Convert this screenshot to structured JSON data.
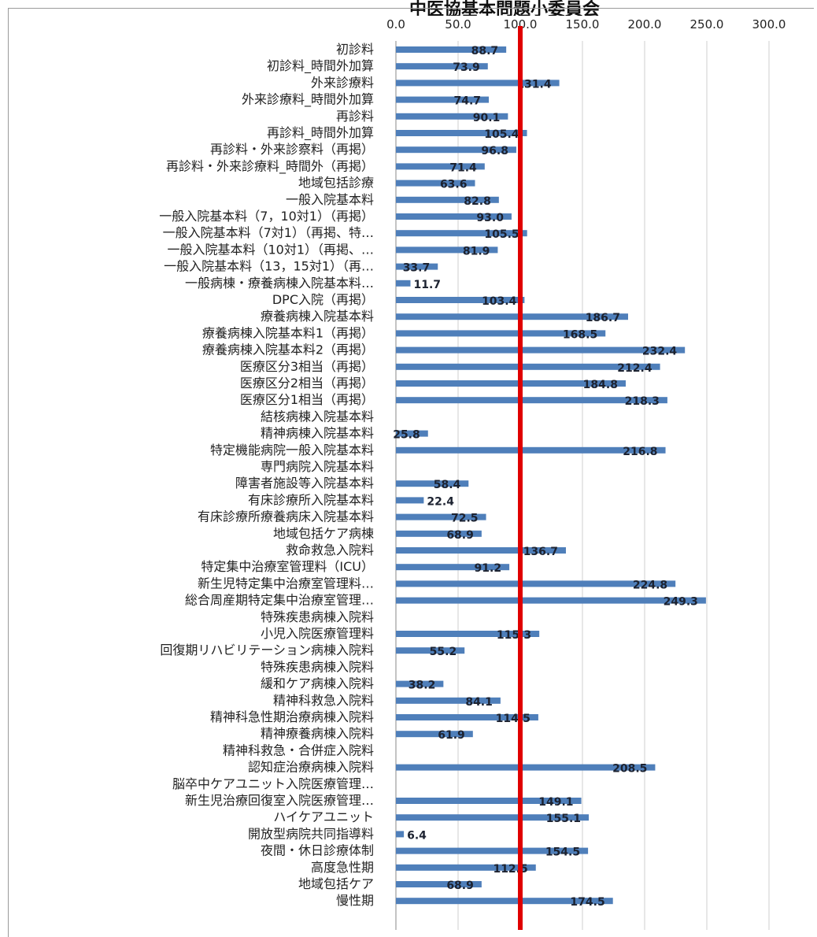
{
  "title": "中医協基本問題小委員会",
  "colors": {
    "bar": "#4f7fba",
    "refline": "#e00000",
    "grid": "#cfcfcf"
  },
  "chart_data": {
    "type": "bar",
    "orientation": "horizontal",
    "title": "",
    "xlabel": "",
    "ylabel": "",
    "xlim": [
      0,
      300
    ],
    "xticks": [
      "0.0",
      "50.0",
      "100.0",
      "150.0",
      "200.0",
      "250.0",
      "300.0"
    ],
    "grid": true,
    "legend": "none",
    "reference_line": 100,
    "categories": [
      "初診料",
      "初診料_時間外加算",
      "外来診療料",
      "外来診療料_時間外加算",
      "再診料",
      "再診料_時間外加算",
      "再診料・外来診察料（再掲）",
      "再診料・外来診療料_時間外（再掲）",
      "地域包括診療",
      "一般入院基本料",
      "一般入院基本料（7，10対1）（再掲）",
      "一般入院基本料（7対1）（再掲、特…",
      "一般入院基本料（10対1）（再掲、…",
      "一般入院基本料（13，15対1）（再…",
      "一般病棟・療養病棟入院基本料…",
      "DPC入院（再掲）",
      "療養病棟入院基本料",
      "療養病棟入院基本料1（再掲）",
      "療養病棟入院基本料2（再掲）",
      "医療区分3相当（再掲）",
      "医療区分2相当（再掲）",
      "医療区分1相当（再掲）",
      "結核病棟入院基本料",
      "精神病棟入院基本料",
      "特定機能病院一般入院基本料",
      "専門病院入院基本料",
      "障害者施設等入院基本料",
      "有床診療所入院基本料",
      "有床診療所療養病床入院基本料",
      "地域包括ケア病棟",
      "救命救急入院料",
      "特定集中治療室管理料（ICU）",
      "新生児特定集中治療室管理料…",
      "総合周産期特定集中治療室管理…",
      "特殊疾患病棟入院料",
      "小児入院医療管理料",
      "回復期リハビリテーション病棟入院料",
      "特殊疾患病棟入院料",
      "緩和ケア病棟入院料",
      "精神科救急入院料",
      "精神科急性期治療病棟入院料",
      "精神療養病棟入院料",
      "精神科救急・合併症入院料",
      "認知症治療病棟入院料",
      "脳卒中ケアユニット入院医療管理…",
      "新生児治療回復室入院医療管理…",
      "ハイケアユニット",
      "開放型病院共同指導料",
      "夜間・休日診療体制",
      "高度急性期",
      "地域包括ケア",
      "慢性期"
    ],
    "values": [
      88.7,
      73.9,
      131.4,
      74.7,
      90.1,
      105.4,
      96.8,
      71.4,
      63.6,
      82.8,
      93.0,
      105.5,
      81.9,
      33.7,
      11.7,
      103.4,
      186.7,
      168.5,
      232.4,
      212.4,
      184.8,
      218.3,
      null,
      25.8,
      216.8,
      null,
      58.4,
      22.4,
      72.5,
      68.9,
      136.7,
      91.2,
      224.8,
      249.3,
      null,
      115.3,
      55.2,
      null,
      38.2,
      84.1,
      114.5,
      61.9,
      null,
      208.5,
      null,
      149.1,
      155.1,
      6.4,
      154.5,
      112.5,
      68.9,
      174.5
    ],
    "value_labels": [
      "88.7",
      "73.9",
      "131.4",
      "74.7",
      "90.1",
      "105.4",
      "96.8",
      "71.4",
      "63.6",
      "82.8",
      "93.0",
      "105.5",
      "81.9",
      "33.7",
      "11.7",
      "103.4",
      "186.7",
      "168.5",
      "232.4",
      "212.4",
      "184.8",
      "218.3",
      "",
      "25.8",
      "216.8",
      "",
      "58.4",
      "22.4",
      "72.5",
      "68.9",
      "136.7",
      "91.2",
      "224.8",
      "249.3",
      "",
      "115.3",
      "55.2",
      "",
      "38.2",
      "84.1",
      "114.5",
      "61.9",
      "",
      "208.5",
      "",
      "149.1",
      "155.1",
      "6.4",
      "154.5",
      "112.5",
      "68.9",
      "174.5"
    ]
  }
}
